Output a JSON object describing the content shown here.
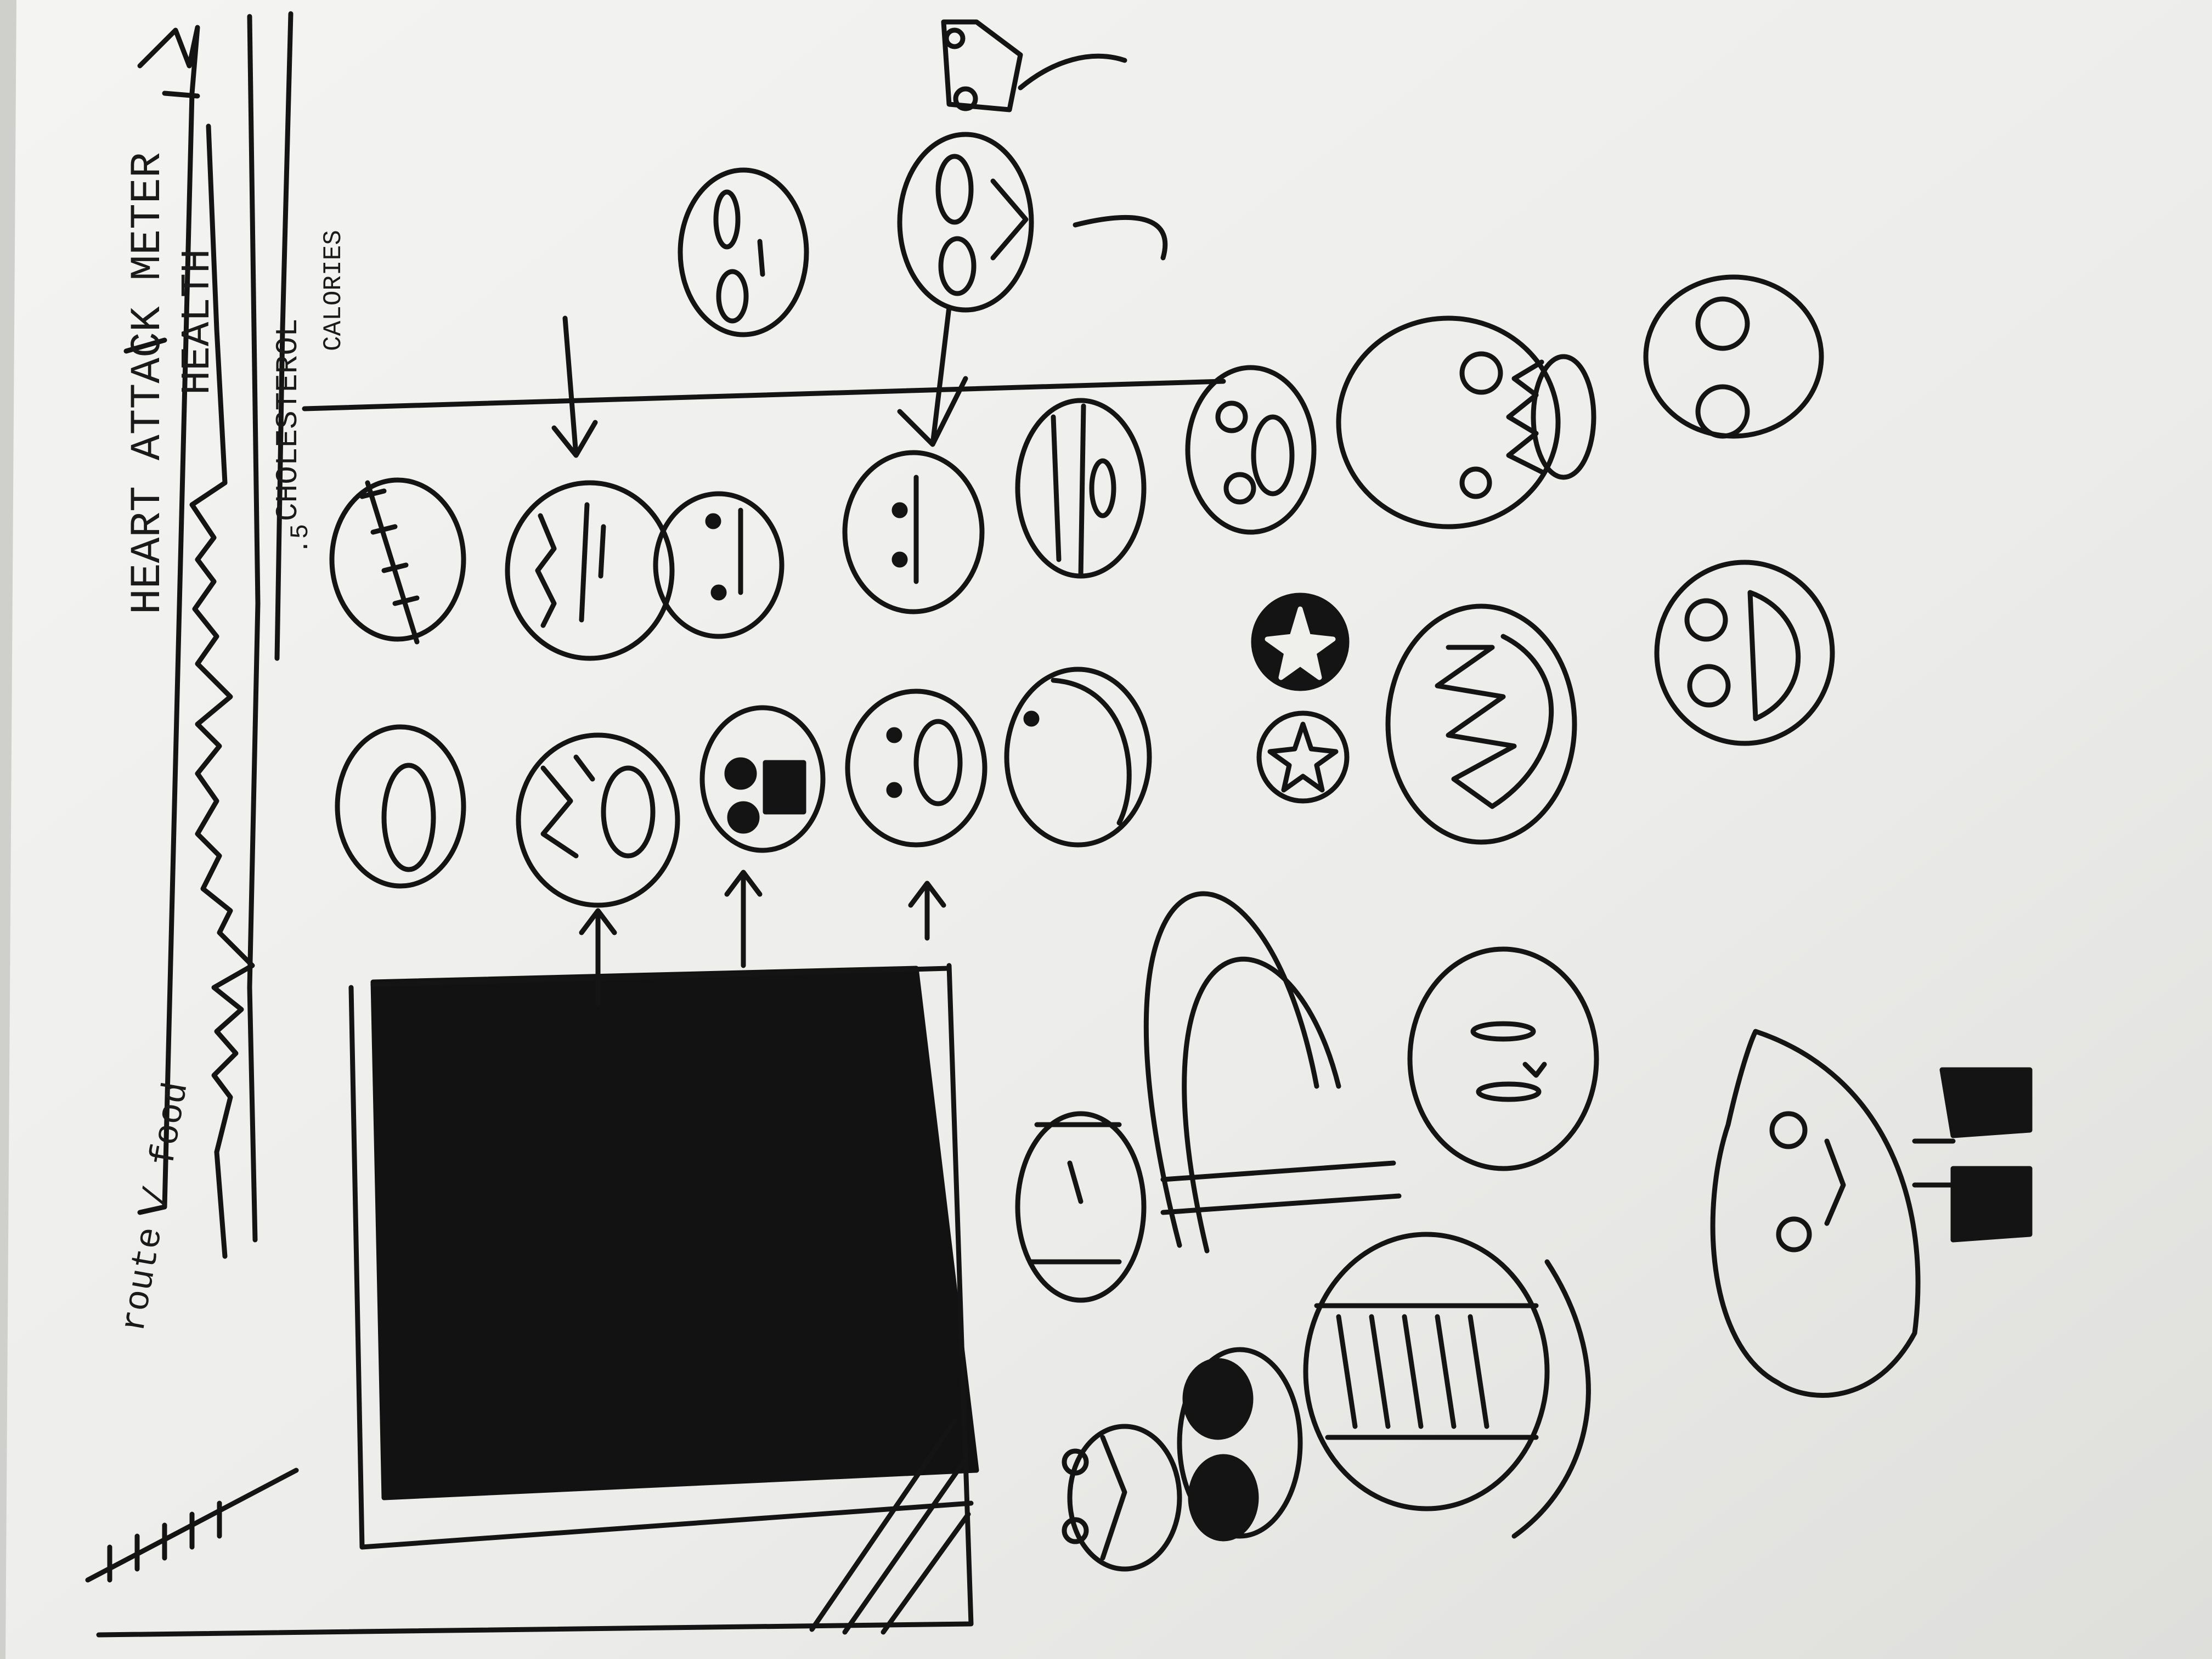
{
  "photo": {
    "subject": "hand-drawn sketch page"
  },
  "labels": {
    "heart_attack_meter": "HEART ATTACK METER",
    "health": "HEALTH",
    "cholesterol": "CHOLESTEROL",
    "calories": "CALORIES",
    "route_food": "route / food",
    "marker_glyph": ".5"
  },
  "colors": {
    "paper": "#efefec",
    "ink": "#141414",
    "table": "#cfcfcb"
  }
}
